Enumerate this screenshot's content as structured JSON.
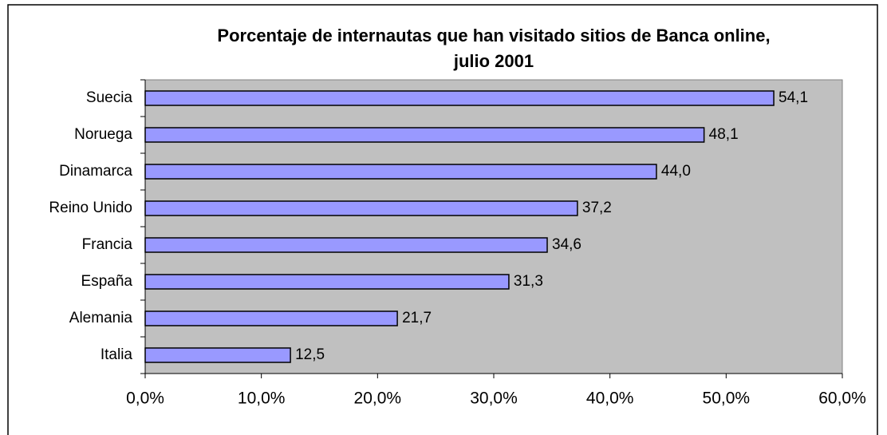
{
  "chart_data": {
    "type": "hbar",
    "title": [
      "Porcentaje de internautas que han visitado sitios de Banca online,",
      "julio 2001"
    ],
    "categories": [
      "Suecia",
      "Noruega",
      "Dinamarca",
      "Reino Unido",
      "Francia",
      "España",
      "Alemania",
      "Italia"
    ],
    "values": [
      54.1,
      48.1,
      44.0,
      37.2,
      34.6,
      31.3,
      21.7,
      12.5
    ],
    "value_labels": [
      "54,1",
      "48,1",
      "44,0",
      "37,2",
      "34,6",
      "31,3",
      "21,7",
      "12,5"
    ],
    "color": "#9999ff",
    "xlim": [
      0,
      60
    ],
    "xticks": [
      {
        "value": 0,
        "label": "0,0%"
      },
      {
        "value": 10,
        "label": "10,0%"
      },
      {
        "value": 20,
        "label": "20,0%"
      },
      {
        "value": 30,
        "label": "30,0%"
      },
      {
        "value": 40,
        "label": "40,0%"
      },
      {
        "value": 50,
        "label": "50,0%"
      },
      {
        "value": 60,
        "label": "60,0%"
      }
    ],
    "plot_background": "#c0c0c0"
  }
}
